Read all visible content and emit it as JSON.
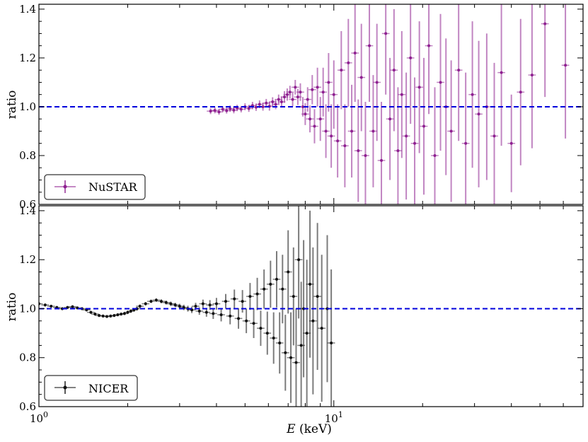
{
  "chart_data": [
    {
      "type": "scatter",
      "panel": "top",
      "ylabel": "ratio",
      "xscale": "log",
      "xlim": [
        1.0,
        70.0
      ],
      "ylim": [
        0.6,
        1.42
      ],
      "yticks": [
        "0.6",
        "0.8",
        "1.0",
        "1.2",
        "1.4"
      ],
      "reference_line": {
        "y": 1.0,
        "style": "dashed",
        "color": "#0000dd"
      },
      "legend": {
        "label": "NuSTAR",
        "placement": "lower-left"
      },
      "series": [
        {
          "name": "NuSTAR",
          "color": "#8e2090",
          "x_range_keV": [
            3.8,
            70
          ],
          "points": [
            [
              3.82,
              0.982,
              0.012
            ],
            [
              3.95,
              0.985,
              0.012
            ],
            [
              4.08,
              0.979,
              0.012
            ],
            [
              4.2,
              0.99,
              0.012
            ],
            [
              4.33,
              0.984,
              0.012
            ],
            [
              4.45,
              0.992,
              0.013
            ],
            [
              4.58,
              0.986,
              0.013
            ],
            [
              4.7,
              0.995,
              0.013
            ],
            [
              4.85,
              0.99,
              0.013
            ],
            [
              5.0,
              1.0,
              0.014
            ],
            [
              5.15,
              0.993,
              0.014
            ],
            [
              5.3,
              1.005,
              0.015
            ],
            [
              5.45,
              0.998,
              0.015
            ],
            [
              5.6,
              1.01,
              0.016
            ],
            [
              5.75,
              1.0,
              0.016
            ],
            [
              5.9,
              1.015,
              0.017
            ],
            [
              6.05,
              1.002,
              0.018
            ],
            [
              6.2,
              1.02,
              0.019
            ],
            [
              6.35,
              1.01,
              0.02
            ],
            [
              6.5,
              1.03,
              0.02
            ],
            [
              6.65,
              1.02,
              0.022
            ],
            [
              6.8,
              1.04,
              0.024
            ],
            [
              6.95,
              1.05,
              0.025
            ],
            [
              7.1,
              1.06,
              0.026
            ],
            [
              7.25,
              1.03,
              0.028
            ],
            [
              7.4,
              1.08,
              0.03
            ],
            [
              7.55,
              1.04,
              0.033
            ],
            [
              7.7,
              1.06,
              0.036
            ],
            [
              7.85,
              1.0,
              0.04
            ],
            [
              8.0,
              0.97,
              0.045
            ],
            [
              8.15,
              1.03,
              0.05
            ],
            [
              8.3,
              0.95,
              0.055
            ],
            [
              8.45,
              1.07,
              0.06
            ],
            [
              8.6,
              0.92,
              0.07
            ],
            [
              8.8,
              1.08,
              0.08
            ],
            [
              9.0,
              0.95,
              0.09
            ],
            [
              9.2,
              1.06,
              0.1
            ],
            [
              9.4,
              0.9,
              0.11
            ],
            [
              9.6,
              1.1,
              0.12
            ],
            [
              9.8,
              0.88,
              0.13
            ],
            [
              10.0,
              1.05,
              0.14
            ],
            [
              10.3,
              0.86,
              0.15
            ],
            [
              10.6,
              1.15,
              0.16
            ],
            [
              10.9,
              0.84,
              0.17
            ],
            [
              11.2,
              1.18,
              0.18
            ],
            [
              11.5,
              0.9,
              0.19
            ],
            [
              11.8,
              1.22,
              0.2
            ],
            [
              12.1,
              0.82,
              0.21
            ],
            [
              12.4,
              1.12,
              0.22
            ],
            [
              12.8,
              0.8,
              0.22
            ],
            [
              13.2,
              1.25,
              0.23
            ],
            [
              13.6,
              0.9,
              0.23
            ],
            [
              14.0,
              1.1,
              0.24
            ],
            [
              14.5,
              0.78,
              0.24
            ],
            [
              15.0,
              1.3,
              0.25
            ],
            [
              15.5,
              0.95,
              0.25
            ],
            [
              16.0,
              1.15,
              0.25
            ],
            [
              16.5,
              0.82,
              0.26
            ],
            [
              17.0,
              1.05,
              0.26
            ],
            [
              17.6,
              0.88,
              0.26
            ],
            [
              18.2,
              1.2,
              0.27
            ],
            [
              18.8,
              0.85,
              0.27
            ],
            [
              19.5,
              1.08,
              0.27
            ],
            [
              20.2,
              0.92,
              0.28
            ],
            [
              21.0,
              1.25,
              0.28
            ],
            [
              22.0,
              0.8,
              0.28
            ],
            [
              23.0,
              1.1,
              0.28
            ],
            [
              24.0,
              1.0,
              0.28
            ],
            [
              25.0,
              0.9,
              0.29
            ],
            [
              26.5,
              1.15,
              0.29
            ],
            [
              28.0,
              0.85,
              0.29
            ],
            [
              29.5,
              1.05,
              0.3
            ],
            [
              31.0,
              0.97,
              0.3
            ],
            [
              33.0,
              1.0,
              0.3
            ],
            [
              35.0,
              0.88,
              0.3
            ],
            [
              37.0,
              1.14,
              0.3
            ],
            [
              40.0,
              0.85,
              0.2
            ],
            [
              43.0,
              1.06,
              0.3
            ],
            [
              47.0,
              1.13,
              0.3
            ],
            [
              52.0,
              1.34,
              0.3
            ],
            [
              61.0,
              1.17,
              0.3
            ]
          ]
        }
      ]
    },
    {
      "type": "scatter",
      "panel": "bottom",
      "ylabel": "ratio",
      "xlabel": "E (keV)",
      "xscale": "log",
      "xlim": [
        1.0,
        70.0
      ],
      "ylim": [
        0.6,
        1.42
      ],
      "yticks": [
        "0.6",
        "0.8",
        "1.0",
        "1.2",
        "1.4"
      ],
      "xticks": [
        "10^0",
        "10^1"
      ],
      "reference_line": {
        "y": 1.0,
        "style": "dashed",
        "color": "#0000dd"
      },
      "legend": {
        "label": "NICER",
        "placement": "lower-left"
      },
      "series": [
        {
          "name": "NICER",
          "color": "#111111",
          "x_range_keV": [
            1.0,
            10.0
          ],
          "points": [
            [
              1.0,
              1.02,
              0.006
            ],
            [
              1.05,
              1.015,
              0.006
            ],
            [
              1.1,
              1.01,
              0.006
            ],
            [
              1.15,
              1.005,
              0.006
            ],
            [
              1.2,
              1.0,
              0.006
            ],
            [
              1.25,
              1.005,
              0.006
            ],
            [
              1.3,
              1.008,
              0.006
            ],
            [
              1.35,
              1.003,
              0.006
            ],
            [
              1.4,
              1.0,
              0.006
            ],
            [
              1.45,
              0.995,
              0.006
            ],
            [
              1.5,
              0.985,
              0.006
            ],
            [
              1.55,
              0.978,
              0.006
            ],
            [
              1.6,
              0.972,
              0.006
            ],
            [
              1.65,
              0.97,
              0.006
            ],
            [
              1.7,
              0.968,
              0.006
            ],
            [
              1.75,
              0.97,
              0.006
            ],
            [
              1.8,
              0.972,
              0.006
            ],
            [
              1.85,
              0.975,
              0.006
            ],
            [
              1.9,
              0.978,
              0.006
            ],
            [
              1.95,
              0.98,
              0.006
            ],
            [
              2.0,
              0.985,
              0.006
            ],
            [
              2.05,
              0.99,
              0.006
            ],
            [
              2.1,
              0.995,
              0.007
            ],
            [
              2.15,
              1.0,
              0.007
            ],
            [
              2.2,
              1.01,
              0.007
            ],
            [
              2.3,
              1.02,
              0.007
            ],
            [
              2.4,
              1.03,
              0.007
            ],
            [
              2.5,
              1.035,
              0.007
            ],
            [
              2.6,
              1.03,
              0.008
            ],
            [
              2.7,
              1.025,
              0.008
            ],
            [
              2.8,
              1.02,
              0.009
            ],
            [
              2.9,
              1.015,
              0.009
            ],
            [
              3.0,
              1.01,
              0.01
            ],
            [
              3.1,
              1.005,
              0.011
            ],
            [
              3.2,
              1.0,
              0.012
            ],
            [
              3.3,
              0.995,
              0.013
            ],
            [
              3.4,
              1.01,
              0.014
            ],
            [
              3.5,
              0.99,
              0.015
            ],
            [
              3.6,
              1.02,
              0.017
            ],
            [
              3.7,
              0.985,
              0.018
            ],
            [
              3.8,
              1.015,
              0.02
            ],
            [
              3.9,
              0.98,
              0.022
            ],
            [
              4.0,
              1.02,
              0.024
            ],
            [
              4.15,
              0.975,
              0.027
            ],
            [
              4.3,
              1.03,
              0.03
            ],
            [
              4.45,
              0.97,
              0.034
            ],
            [
              4.6,
              1.04,
              0.038
            ],
            [
              4.75,
              0.96,
              0.042
            ],
            [
              4.9,
              1.03,
              0.046
            ],
            [
              5.05,
              0.95,
              0.05
            ],
            [
              5.2,
              1.05,
              0.055
            ],
            [
              5.35,
              0.94,
              0.06
            ],
            [
              5.5,
              1.06,
              0.066
            ],
            [
              5.65,
              0.92,
              0.072
            ],
            [
              5.8,
              1.08,
              0.08
            ],
            [
              5.95,
              0.9,
              0.088
            ],
            [
              6.1,
              1.1,
              0.096
            ],
            [
              6.25,
              0.88,
              0.105
            ],
            [
              6.4,
              1.12,
              0.115
            ],
            [
              6.55,
              0.86,
              0.125
            ],
            [
              6.7,
              1.08,
              0.14
            ],
            [
              6.85,
              0.82,
              0.155
            ],
            [
              7.0,
              1.15,
              0.17
            ],
            [
              7.15,
              0.8,
              0.185
            ],
            [
              7.3,
              1.05,
              0.2
            ],
            [
              7.45,
              0.78,
              0.22
            ],
            [
              7.6,
              1.2,
              0.24
            ],
            [
              7.75,
              0.85,
              0.26
            ],
            [
              7.9,
              1.0,
              0.28
            ],
            [
              8.1,
              0.9,
              0.3
            ],
            [
              8.3,
              1.1,
              0.3
            ],
            [
              8.5,
              0.95,
              0.3
            ],
            [
              8.8,
              1.05,
              0.3
            ],
            [
              9.1,
              0.92,
              0.3
            ],
            [
              9.5,
              1.0,
              0.3
            ],
            [
              9.8,
              0.86,
              0.3
            ]
          ]
        }
      ]
    }
  ]
}
